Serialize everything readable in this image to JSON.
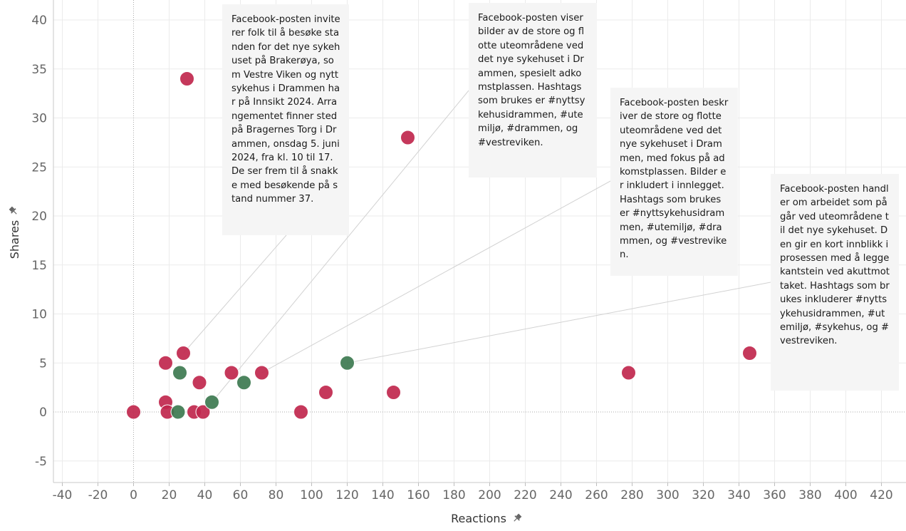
{
  "chart_data": {
    "type": "scatter",
    "xlabel": "Reactions",
    "ylabel": "Shares",
    "xlim": [
      -48,
      432
    ],
    "ylim": [
      -7.5,
      41.5
    ],
    "x_ticks": [
      -40,
      -20,
      0,
      20,
      40,
      60,
      80,
      100,
      120,
      140,
      160,
      180,
      200,
      220,
      240,
      260,
      280,
      300,
      320,
      340,
      360,
      380,
      400,
      420
    ],
    "y_ticks": [
      -5,
      0,
      5,
      10,
      15,
      20,
      25,
      30,
      35,
      40
    ],
    "grid": true,
    "zero_lines": "dotted",
    "axis_title_icon": "pin-icon",
    "colors": {
      "crimson": "#c0274d",
      "green": "#3d7a50"
    },
    "points": [
      {
        "x": 0,
        "y": 0,
        "color": "crimson"
      },
      {
        "x": 18,
        "y": 5,
        "color": "crimson"
      },
      {
        "x": 18,
        "y": 1,
        "color": "crimson"
      },
      {
        "x": 19,
        "y": 0,
        "color": "crimson"
      },
      {
        "x": 25,
        "y": 0,
        "color": "green"
      },
      {
        "x": 26,
        "y": 4,
        "color": "green"
      },
      {
        "x": 28,
        "y": 6,
        "color": "crimson"
      },
      {
        "x": 30,
        "y": 34,
        "color": "crimson"
      },
      {
        "x": 34,
        "y": 0,
        "color": "crimson"
      },
      {
        "x": 37,
        "y": 3,
        "color": "crimson"
      },
      {
        "x": 39,
        "y": 0,
        "color": "crimson"
      },
      {
        "x": 44,
        "y": 1,
        "color": "green"
      },
      {
        "x": 55,
        "y": 4,
        "color": "crimson"
      },
      {
        "x": 62,
        "y": 3,
        "color": "green"
      },
      {
        "x": 72,
        "y": 4,
        "color": "crimson"
      },
      {
        "x": 94,
        "y": 0,
        "color": "crimson"
      },
      {
        "x": 108,
        "y": 2,
        "color": "crimson"
      },
      {
        "x": 120,
        "y": 5,
        "color": "green"
      },
      {
        "x": 146,
        "y": 2,
        "color": "crimson"
      },
      {
        "x": 154,
        "y": 28,
        "color": "crimson"
      },
      {
        "x": 278,
        "y": 4,
        "color": "crimson"
      },
      {
        "x": 346,
        "y": 6,
        "color": "crimson"
      }
    ],
    "annotations": [
      {
        "text": "Facebook-posten inviterer folk til å besøke standen for det nye sykehuset på Brakerøya, som Vestre Viken og nytt sykehus i Drammen har på Innsikt 2024. Arrangementet finner sted på Bragernes Torg i Drammen, onsdag 5. juni 2024, fra kl. 10 til 17. De ser frem til å snakke med besøkende på stand nummer 37.",
        "target": {
          "x": 28,
          "y": 6
        }
      },
      {
        "text": "Facebook-posten viser bilder av de store og flotte uteområdene ved det nye sykehuset i Drammen, spesielt adkomstplassen. Hashtags som brukes er #nyttsykehusidrammen, #utemiljø, #drammen, og #vestreviken.",
        "target": {
          "x": 44,
          "y": 1
        }
      },
      {
        "text": "Facebook-posten beskriver de store og flotte uteområdene ved det nye sykehuset i Drammen, med fokus på adkomstplassen. Bilder er inkludert i innlegget. Hashtags som brukes er #nyttsykehusidrammen, #utemiljø, #drammen, og #vestreviken.",
        "target": {
          "x": 72,
          "y": 4
        }
      },
      {
        "text": "Facebook-posten handler om arbeidet som pågår ved uteområdene til det nye sykehuset. Den gir en kort innblikk i prosessen med å legge kantstein ved akuttmottaket. Hashtags som brukes inkluderer #nyttsykehusidrammen, #utemiljø, #sykehus, og #vestreviken.",
        "target": {
          "x": 120,
          "y": 5
        }
      }
    ]
  }
}
